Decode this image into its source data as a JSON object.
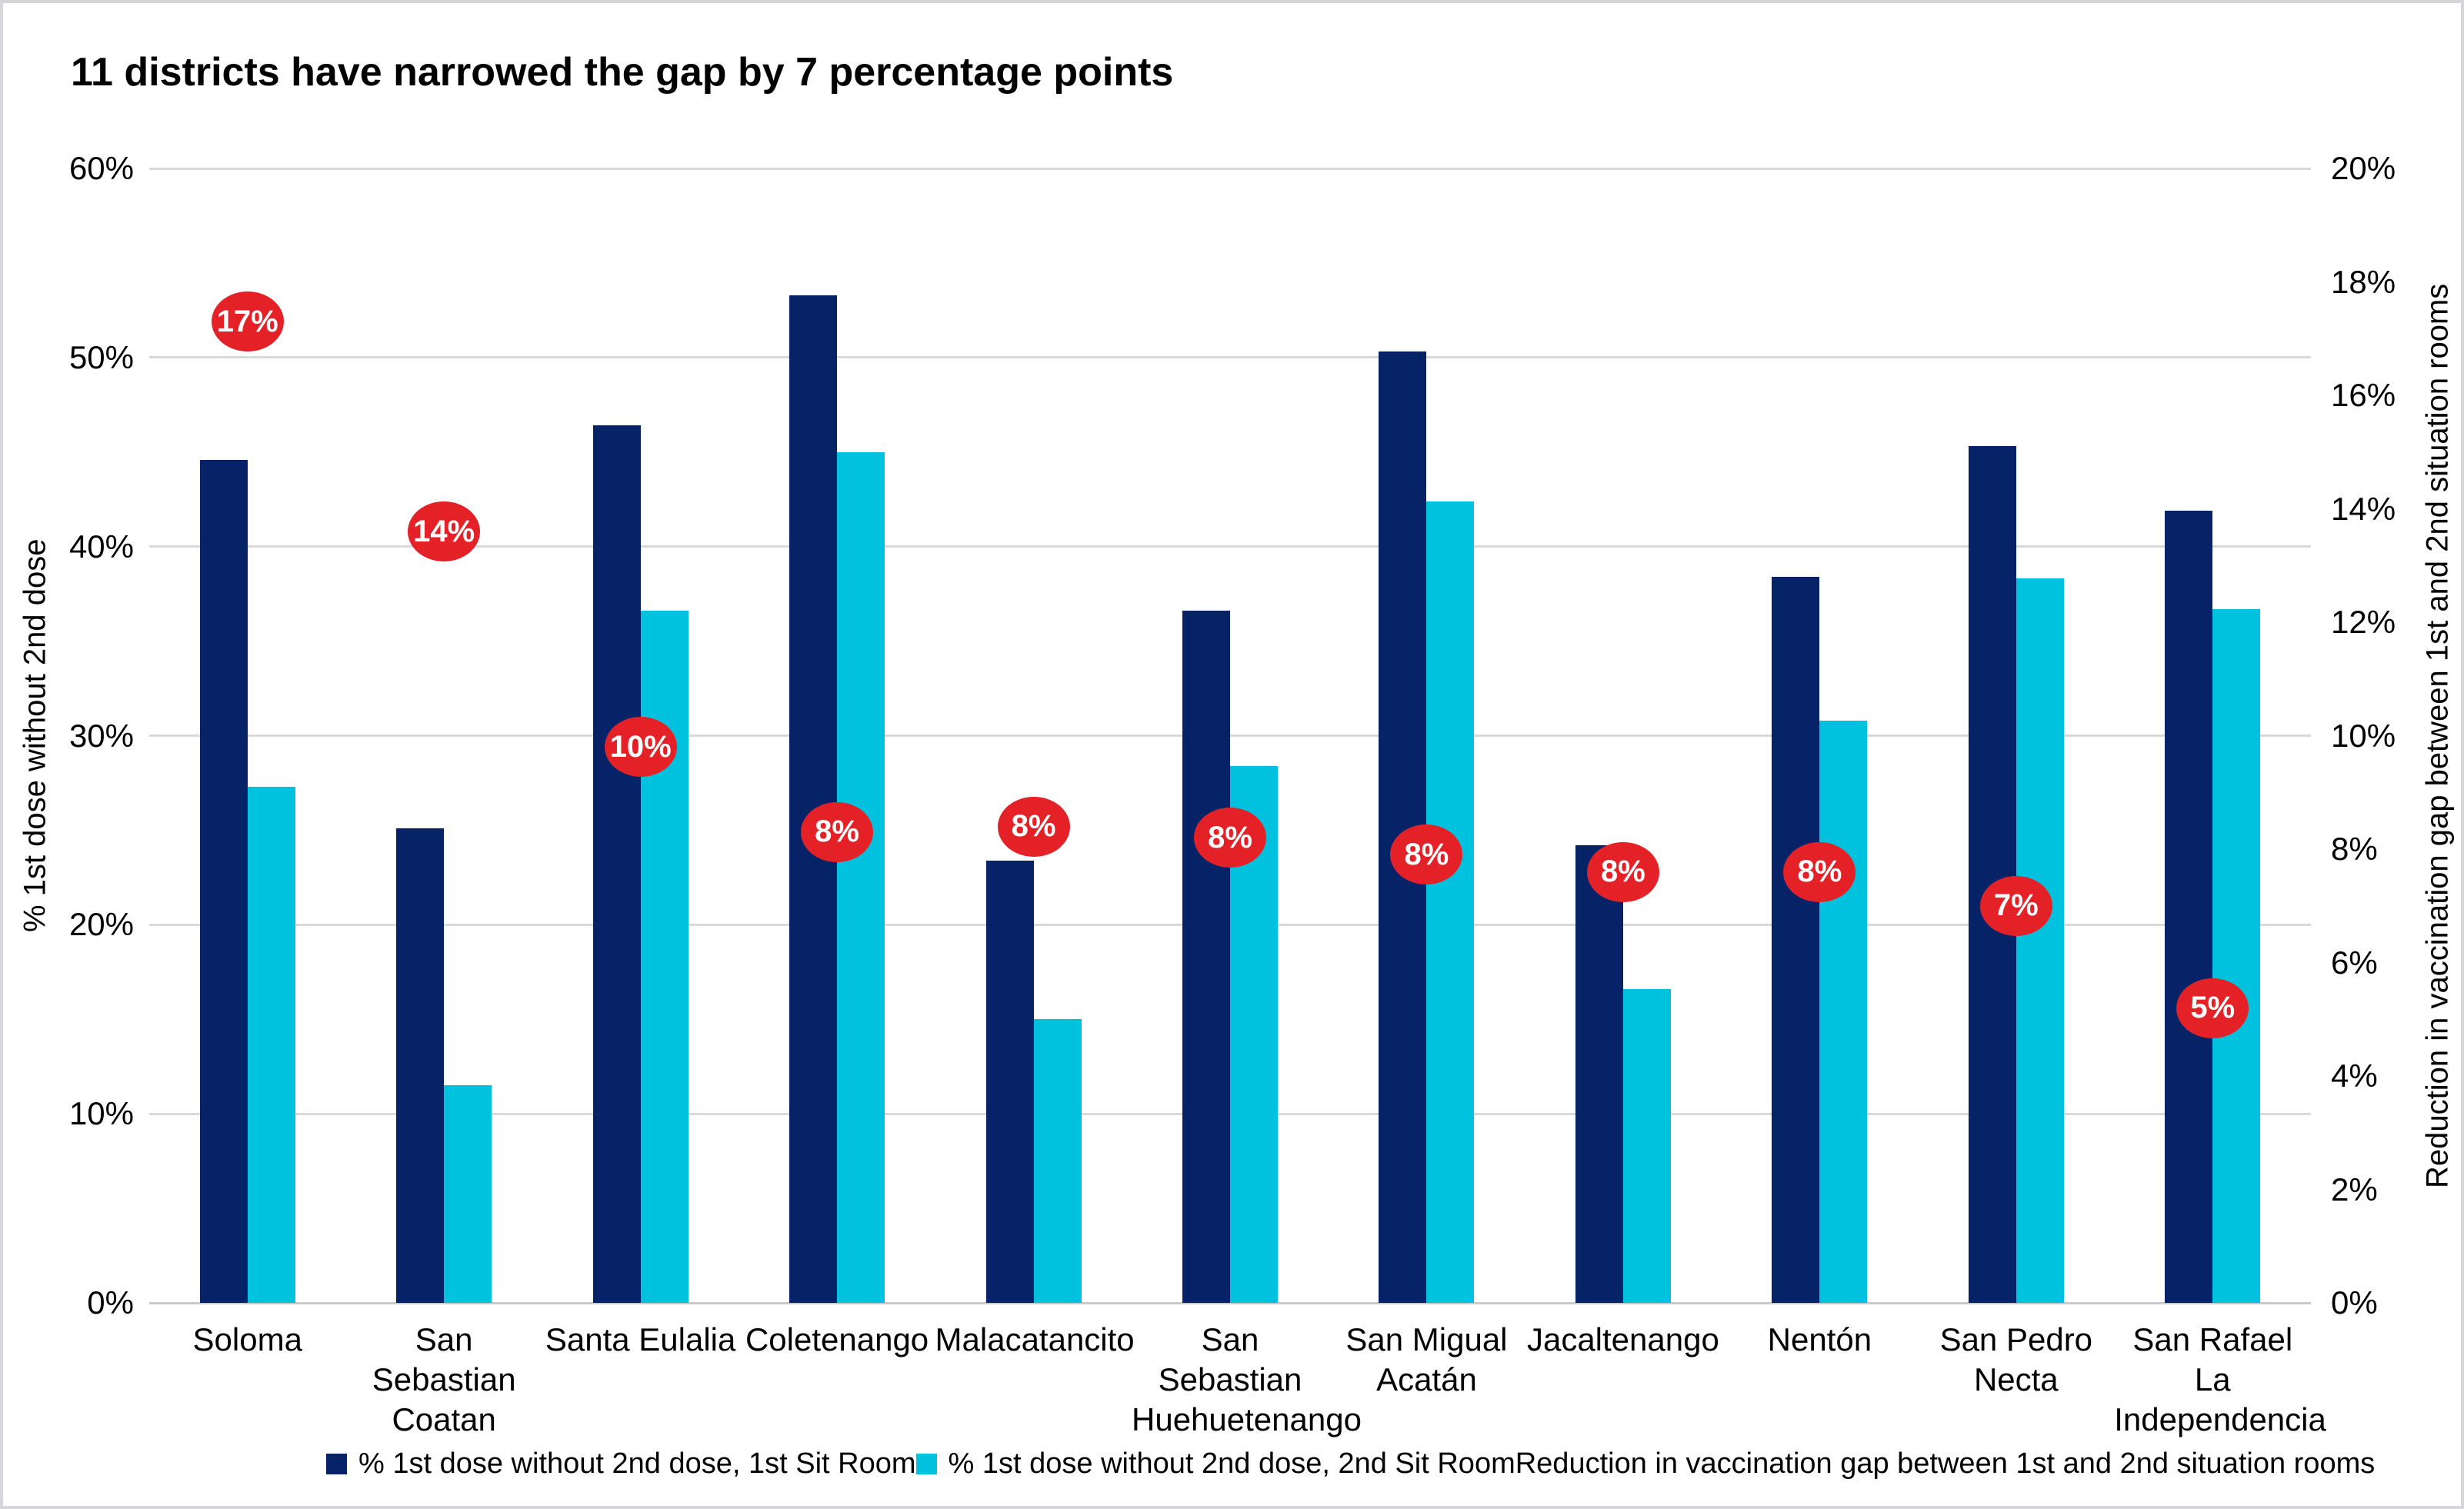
{
  "title": "11 districts have narrowed the gap by 7 percentage points",
  "colors": {
    "navy": "#052366",
    "cyan": "#00c1de",
    "red": "#e32127",
    "gridline": "#d9d9d9",
    "frame": "#d6d6da"
  },
  "chart_data": {
    "type": "bar",
    "title": "11 districts have narrowed the gap by 7 percentage points",
    "categories": [
      "Soloma",
      "San Sebastian Coatan",
      "Santa Eulalia",
      "Coletenango",
      "Malacatancito",
      "San Sebastian Huehuetenango",
      "San Migual Acatán",
      "Jacaltenango",
      "Nentón",
      "San Pedro Necta",
      "San Rafael La Independencia"
    ],
    "series": [
      {
        "name": "% 1st dose without 2nd dose, 1st Sit Room",
        "type": "bar",
        "axis": "left",
        "color_key": "navy",
        "values": [
          44.6,
          25.1,
          46.4,
          53.3,
          23.4,
          36.6,
          50.3,
          24.2,
          38.4,
          45.3,
          41.9
        ]
      },
      {
        "name": "% 1st dose without 2nd dose, 2nd Sit Room",
        "type": "bar",
        "axis": "left",
        "color_key": "cyan",
        "values": [
          27.3,
          11.5,
          36.6,
          45.0,
          15.0,
          28.4,
          42.4,
          16.6,
          30.8,
          38.3,
          36.7
        ]
      },
      {
        "name": "Reduction in vaccination gap between 1st and 2nd situation rooms",
        "type": "point-label",
        "axis": "right",
        "color_key": "red",
        "values": [
          17.3,
          13.6,
          9.8,
          8.3,
          8.4,
          8.2,
          7.9,
          7.6,
          7.6,
          7.0,
          5.2
        ],
        "labels": [
          "17%",
          "14%",
          "10%",
          "8%",
          "8%",
          "8%",
          "8%",
          "8%",
          "8%",
          "7%",
          "5%"
        ]
      }
    ],
    "left_axis": {
      "title": "% 1st dose without 2nd dose",
      "min": 0,
      "max": 60,
      "step": 10,
      "ticks": [
        "0%",
        "10%",
        "20%",
        "30%",
        "40%",
        "50%",
        "60%"
      ]
    },
    "right_axis": {
      "title": "Reduction in vaccination gap between 1st and 2nd situation rooms",
      "min": 0,
      "max": 20,
      "step": 2,
      "ticks": [
        "0%",
        "2%",
        "4%",
        "6%",
        "8%",
        "10%",
        "12%",
        "14%",
        "16%",
        "18%",
        "20%"
      ]
    },
    "grid": true,
    "legend_position": "bottom"
  },
  "legend": {
    "items": [
      {
        "label": "% 1st dose without 2nd dose, 1st Sit Room",
        "marker": "navy"
      },
      {
        "label": "% 1st dose without 2nd dose, 2nd Sit Room",
        "marker": "cyan"
      },
      {
        "label": "Reduction in vaccination gap between 1st and 2nd situation rooms",
        "marker": null
      }
    ]
  }
}
